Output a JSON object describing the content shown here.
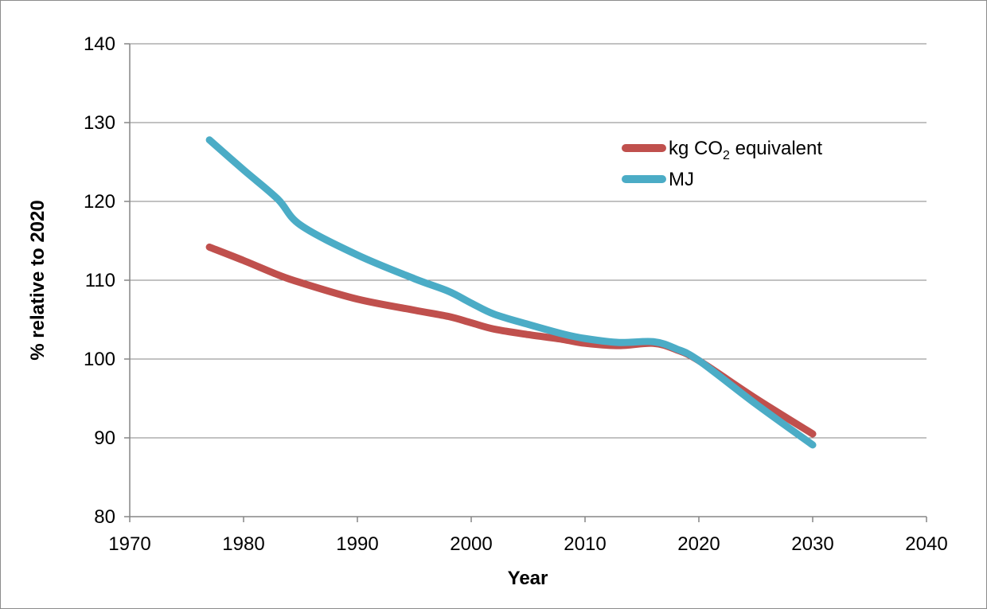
{
  "chart_data": {
    "type": "line",
    "xlabel": "Year",
    "ylabel": "% relative to 2020",
    "xlim": [
      1970,
      2040
    ],
    "ylim": [
      80,
      140
    ],
    "xticks": [
      1970,
      1980,
      1990,
      2000,
      2010,
      2020,
      2030,
      2040
    ],
    "yticks": [
      80,
      90,
      100,
      110,
      120,
      130,
      140
    ],
    "grid": "horizontal",
    "legend_position": "top-right",
    "series": [
      {
        "name_parts": [
          "kg CO",
          "2",
          " equivalent"
        ],
        "color": "#c0504d",
        "x": [
          1977,
          1980,
          1983,
          1985,
          1990,
          1995,
          1998,
          2000,
          2002,
          2005,
          2008,
          2010,
          2013,
          2016,
          2018,
          2020,
          2025,
          2030
        ],
        "y": [
          114.2,
          112.5,
          110.7,
          109.7,
          107.6,
          106.2,
          105.4,
          104.6,
          103.8,
          103.1,
          102.5,
          102.0,
          101.7,
          102.0,
          101.2,
          99.8,
          95.0,
          90.5
        ]
      },
      {
        "name_parts": [
          "MJ"
        ],
        "color": "#4bacc6",
        "x": [
          1977,
          1980,
          1983,
          1985,
          1990,
          1995,
          1998,
          2000,
          2002,
          2005,
          2008,
          2010,
          2013,
          2016,
          2018,
          2020,
          2025,
          2030
        ],
        "y": [
          127.8,
          124.0,
          120.3,
          117.0,
          113.2,
          110.2,
          108.6,
          107.1,
          105.7,
          104.4,
          103.2,
          102.6,
          102.1,
          102.2,
          101.3,
          99.8,
          94.3,
          89.1
        ]
      }
    ]
  }
}
